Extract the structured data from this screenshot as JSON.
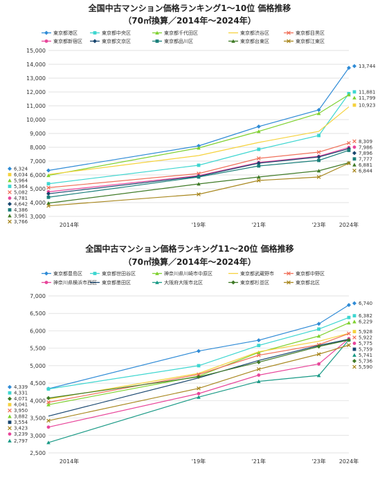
{
  "chart_data": [
    {
      "type": "line",
      "title": "全国中古マンション価格ランキング1～10位 価格推移",
      "subtitle": "（70㎡換算／2014年～2024年）",
      "x": [
        2014,
        2019,
        2021,
        2023,
        2024
      ],
      "x_tick_labels": [
        "2014年",
        "'19年",
        "'21年",
        "'23年",
        "2024年"
      ],
      "ylim": [
        3000,
        15000
      ],
      "y_ticks": [
        "3,000",
        "4,000",
        "5,000",
        "6,000",
        "7,000",
        "8,000",
        "9,000",
        "10,000",
        "11,000",
        "12,000",
        "13,000",
        "14,000",
        "15,000"
      ],
      "grid": true,
      "legend": "top",
      "series": [
        {
          "name": "東京都港区",
          "color": "#2f8bd6",
          "marker": "diamond",
          "values": [
            6324,
            8100,
            9500,
            10700,
            13744
          ],
          "start_label": "6,324",
          "end_label": "13,744"
        },
        {
          "name": "東京都中央区",
          "color": "#3dd6d0",
          "marker": "square",
          "values": [
            5364,
            6700,
            7850,
            8850,
            11881
          ],
          "start_label": "5,364",
          "end_label": "11,881"
        },
        {
          "name": "東京都千代田区",
          "color": "#7fd12f",
          "marker": "triangle",
          "values": [
            5964,
            7950,
            9150,
            10450,
            11799
          ],
          "start_label": "5,964",
          "end_label": "11,799"
        },
        {
          "name": "東京都渋谷区",
          "color": "#f5d23c",
          "marker": "none",
          "values": [
            6034,
            7400,
            8350,
            9150,
            10923
          ],
          "start_label": "6,034",
          "end_label": "10,923"
        },
        {
          "name": "東京都目黒区",
          "color": "#f0705a",
          "marker": "cross",
          "values": [
            5082,
            6100,
            7200,
            7650,
            8309
          ],
          "start_label": "5,082",
          "end_label": "8,309"
        },
        {
          "name": "東京都新宿区",
          "color": "#e8459a",
          "marker": "circle",
          "values": [
            4781,
            5950,
            6900,
            7350,
            7986
          ],
          "start_label": "4,781",
          "end_label": "7,986"
        },
        {
          "name": "東京都文京区",
          "color": "#17456e",
          "marker": "diamond",
          "values": [
            4642,
            5900,
            6850,
            7300,
            7896
          ],
          "start_label": "4,642",
          "end_label": "7,896"
        },
        {
          "name": "東京都品川区",
          "color": "#1a7f7a",
          "marker": "square",
          "values": [
            4386,
            5850,
            6650,
            7050,
            7777
          ],
          "start_label": "4,386",
          "end_label": "7,777"
        },
        {
          "name": "東京都台東区",
          "color": "#3f7a26",
          "marker": "triangle",
          "values": [
            3961,
            5350,
            5850,
            6300,
            6881
          ],
          "start_label": "3,961",
          "end_label": "6,881"
        },
        {
          "name": "東京都江東区",
          "color": "#a8871e",
          "marker": "cross",
          "values": [
            3766,
            4600,
            5600,
            5850,
            6844
          ],
          "start_label": "3,766",
          "end_label": "6,844"
        }
      ]
    },
    {
      "type": "line",
      "title": "全国中古マンション価格ランキング11～20位 価格推移",
      "subtitle": "（70㎡換算／2014年～2024年）",
      "x": [
        2014,
        2019,
        2021,
        2023,
        2024
      ],
      "x_tick_labels": [
        "2014年",
        "'19年",
        "'21年",
        "'23年",
        "2024年"
      ],
      "ylim": [
        2500,
        7000
      ],
      "y_ticks": [
        "2,500",
        "3,000",
        "3,500",
        "4,000",
        "4,500",
        "5,000",
        "5,500",
        "6,000",
        "6,500",
        "7,000"
      ],
      "grid": true,
      "legend": "top",
      "series": [
        {
          "name": "東京都豊島区",
          "color": "#2f8bd6",
          "marker": "diamond",
          "values": [
            4339,
            5420,
            5730,
            6200,
            6740
          ],
          "start_label": "4,339",
          "end_label": "6,740"
        },
        {
          "name": "東京都世田谷区",
          "color": "#3dd6d0",
          "marker": "square",
          "values": [
            4331,
            5000,
            5580,
            6050,
            6382
          ],
          "start_label": "4,331",
          "end_label": "6,382"
        },
        {
          "name": "神奈川県川崎市中原区",
          "color": "#7fd12f",
          "marker": "triangle",
          "values": [
            3882,
            4700,
            5380,
            5850,
            6229
          ],
          "start_label": "3,882",
          "end_label": "6,229"
        },
        {
          "name": "東京都武蔵野市",
          "color": "#f5d23c",
          "marker": "none",
          "values": [
            4041,
            4780,
            5400,
            5700,
            5928
          ],
          "start_label": "4,041",
          "end_label": "5,928"
        },
        {
          "name": "東京都中野区",
          "color": "#f0705a",
          "marker": "cross",
          "values": [
            3950,
            4750,
            5300,
            5600,
            5922
          ],
          "start_label": "3,950",
          "end_label": "5,922"
        },
        {
          "name": "神奈川県横浜市西区",
          "color": "#e8459a",
          "marker": "circle",
          "values": [
            3239,
            4200,
            4730,
            5050,
            5775
          ],
          "start_label": "3,239",
          "end_label": "5,775"
        },
        {
          "name": "東京都墨田区",
          "color": "#17456e",
          "marker": "none",
          "values": [
            3554,
            4650,
            5150,
            5580,
            5759
          ],
          "start_label": "3,554",
          "end_label": "5,759"
        },
        {
          "name": "大阪府大阪市北区",
          "color": "#1a9a86",
          "marker": "triangle",
          "values": [
            2797,
            4100,
            4550,
            4720,
            5741
          ],
          "start_label": "2,797",
          "end_label": "5,741"
        },
        {
          "name": "東京都杉並区",
          "color": "#3f7a26",
          "marker": "diamond",
          "values": [
            4071,
            4680,
            5100,
            5550,
            5736
          ],
          "start_label": "4,071",
          "end_label": "5,736"
        },
        {
          "name": "東京都北区",
          "color": "#a8871e",
          "marker": "cross",
          "values": [
            3423,
            4350,
            4900,
            5330,
            5590
          ],
          "start_label": "3,423",
          "end_label": "5,590"
        }
      ]
    }
  ]
}
